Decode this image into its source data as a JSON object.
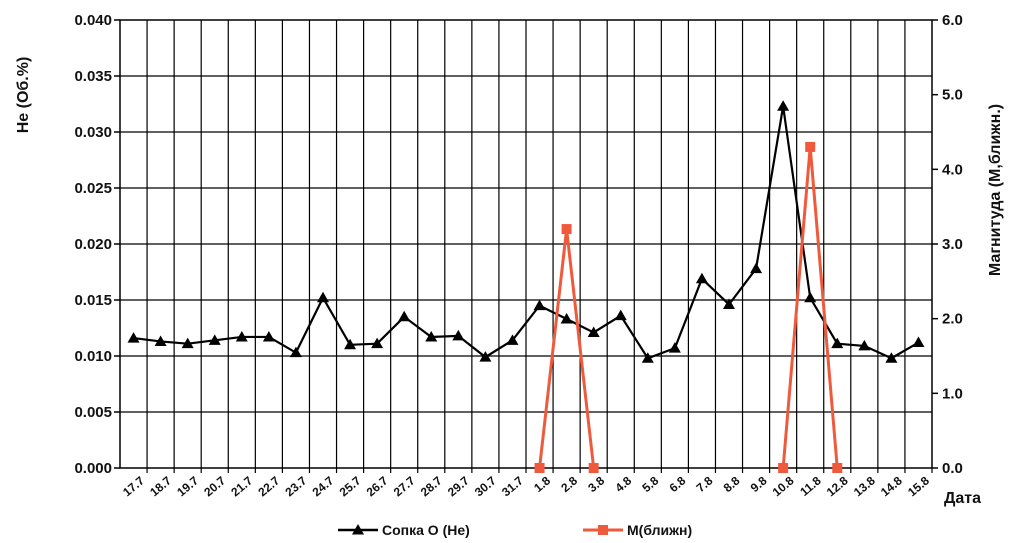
{
  "chart_data": {
    "type": "line",
    "title": "",
    "xlabel": "Дата",
    "ylabel_left": "He (Об.%)",
    "ylabel_right": "Магнитуда (М,ближн.)",
    "ylim_left": [
      0,
      0.04
    ],
    "ylim_right": [
      0,
      6
    ],
    "yticks_left": [
      "0.000",
      "0.005",
      "0.010",
      "0.015",
      "0.020",
      "0.025",
      "0.030",
      "0.035",
      "0.040"
    ],
    "yticks_right": [
      "0.0",
      "1.0",
      "2.0",
      "3.0",
      "4.0",
      "5.0",
      "6.0"
    ],
    "grid": true,
    "legend_position": "bottom",
    "categories": [
      "17.7",
      "18.7",
      "19.7",
      "20.7",
      "21.7",
      "22.7",
      "23.7",
      "24.7",
      "25.7",
      "26.7",
      "27.7",
      "28.7",
      "29.7",
      "30.7",
      "31.7",
      "1.8",
      "2.8",
      "3.8",
      "4.8",
      "5.8",
      "6.8",
      "7.8",
      "8.8",
      "9.8",
      "10.8",
      "11.8",
      "12.8",
      "13.8",
      "14.8",
      "15.8"
    ],
    "series": [
      {
        "name": "Сопка О (He)",
        "axis": "left",
        "color": "#000000",
        "marker": "triangle",
        "values": [
          0.0116,
          0.0113,
          0.0111,
          0.0114,
          0.0117,
          0.0117,
          0.0103,
          0.0152,
          0.011,
          0.0111,
          0.0135,
          0.0117,
          0.0118,
          0.0099,
          0.0114,
          0.0145,
          0.0133,
          0.0121,
          0.0136,
          0.0098,
          0.0107,
          0.0169,
          0.0146,
          0.0178,
          0.0323,
          0.0152,
          0.0111,
          0.0109,
          0.0098,
          0.0112
        ]
      },
      {
        "name": "М(ближн)",
        "axis": "right",
        "color": "#f05a3c",
        "marker": "square",
        "points": [
          {
            "x": 15,
            "y": 0.0
          },
          {
            "x": 16,
            "y": 3.2
          },
          {
            "x": 17,
            "y": 0.0
          },
          {
            "x": null,
            "y": null
          },
          {
            "x": 24,
            "y": 0.0
          },
          {
            "x": 25,
            "y": 4.3
          },
          {
            "x": 26,
            "y": 0.0
          }
        ]
      }
    ]
  }
}
